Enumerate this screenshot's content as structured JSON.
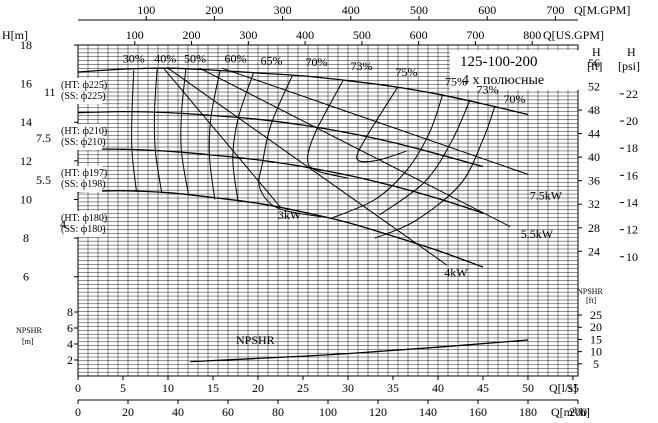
{
  "chart_data": {
    "type": "line",
    "title": "125-100-200",
    "subtitle": "4 х полюсные",
    "axes": {
      "x_bottom_1": {
        "label": "Q[l/s]",
        "ticks": [
          "0",
          "5",
          "10",
          "15",
          "20",
          "25",
          "30",
          "35",
          "40",
          "45",
          "50",
          "55"
        ],
        "range": [
          0,
          55.56
        ]
      },
      "x_bottom_2": {
        "label": "Q[m³/h]",
        "ticks": [
          "0",
          "20",
          "40",
          "60",
          "80",
          "100",
          "120",
          "140",
          "160",
          "180",
          "200"
        ],
        "range": [
          0,
          200
        ]
      },
      "x_top_1": {
        "label": "Q[M.GPM]",
        "ticks": [
          "100",
          "200",
          "300",
          "400",
          "500",
          "600",
          "700"
        ]
      },
      "x_top_2": {
        "label": "Q[US.GPM]",
        "ticks": [
          "100",
          "200",
          "300",
          "400",
          "500",
          "600",
          "700",
          "800"
        ]
      },
      "y_left_head": {
        "label": "H[m]",
        "ticks": [
          "6",
          "8",
          "10",
          "12",
          "14",
          "16",
          "18"
        ],
        "range": [
          5,
          18
        ]
      },
      "y_right_head": {
        "label": "H",
        "unit": "[ft]",
        "ticks": [
          "24",
          "28",
          "32",
          "36",
          "40",
          "44",
          "48",
          "52",
          "56"
        ]
      },
      "y_right_psi": {
        "label": "H",
        "unit": "[psi]",
        "ticks": [
          "10",
          "12",
          "14",
          "16",
          "18",
          "20",
          "22"
        ]
      },
      "y_left_npsh": {
        "label": "NPSHR",
        "unit": "[m]",
        "ticks": [
          "2",
          "4",
          "6",
          "8"
        ],
        "range": [
          0,
          10
        ]
      },
      "y_right_npsh": {
        "label": "NPSHR",
        "unit": "[ft]",
        "ticks": [
          "5",
          "10",
          "15",
          "20",
          "25"
        ]
      }
    },
    "series": [
      {
        "name": "11 (HT: ф225) (SS: ф225)",
        "x": [
          0,
          5,
          10,
          15,
          20,
          25,
          30,
          35,
          40,
          45,
          50
        ],
        "y": [
          16.6,
          16.75,
          16.8,
          16.7,
          16.55,
          16.4,
          16.15,
          15.85,
          15.45,
          14.95,
          14.4
        ]
      },
      {
        "name": "7.5 (HT: ф210) (SS: ф210)",
        "x": [
          0,
          5,
          10,
          15,
          20,
          25,
          30,
          35,
          40,
          45
        ],
        "y": [
          14.5,
          14.55,
          14.5,
          14.35,
          14.15,
          13.85,
          13.45,
          12.95,
          12.35,
          11.7
        ]
      },
      {
        "name": "5.5 (HT: ф197) (SS: ф198)",
        "x": [
          0,
          5,
          10,
          15,
          20,
          25,
          30,
          35,
          40,
          45
        ],
        "y": [
          12.6,
          12.6,
          12.5,
          12.3,
          12.05,
          11.7,
          11.25,
          10.7,
          10.05,
          9.3
        ]
      },
      {
        "name": "4 (HT: ф180) (SS: ф180)",
        "x": [
          0,
          5,
          10,
          15,
          20,
          25,
          30,
          35,
          40,
          45
        ],
        "y": [
          10.4,
          10.45,
          10.35,
          10.1,
          9.8,
          9.35,
          8.8,
          8.1,
          7.35,
          6.5
        ]
      }
    ],
    "npshr": {
      "name": "NPSHR",
      "x": [
        12.5,
        20,
        30,
        40,
        50
      ],
      "y": [
        1.8,
        2.2,
        2.8,
        3.6,
        4.5
      ]
    },
    "efficiency_labels": [
      "30%",
      "40%",
      "50%",
      "60%",
      "65%",
      "70%",
      "73%",
      "75%",
      "75%",
      "73%",
      "70%"
    ],
    "power_labels": [
      "3kW",
      "4kW",
      "5.5kW",
      "7.5kW"
    ],
    "grid": true
  }
}
